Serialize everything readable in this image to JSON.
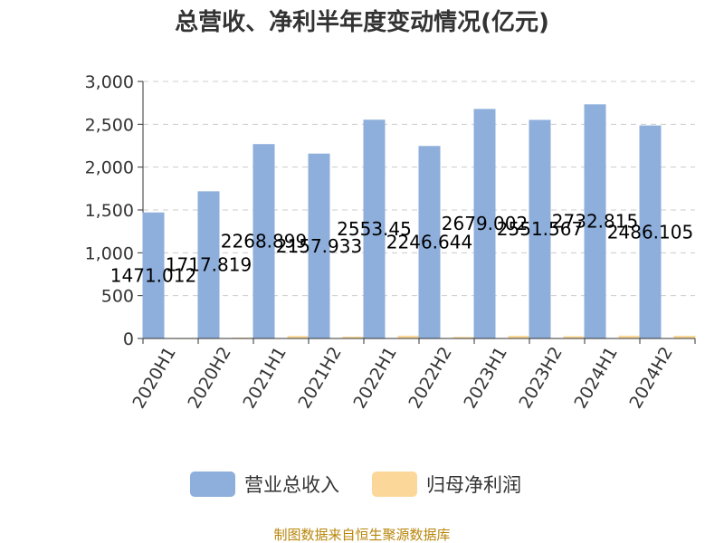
{
  "colors": {
    "revenue": "#8eaedb",
    "net_profit": "#fbd89a",
    "grid": "#cccccc",
    "axis": "#333333",
    "source": "#b8860b"
  },
  "chart_data": {
    "type": "bar",
    "title": "总营收、净利半年度变动情况(亿元)",
    "categories": [
      "2020H1",
      "2020H2",
      "2021H1",
      "2021H2",
      "2022H1",
      "2022H2",
      "2023H1",
      "2023H2",
      "2024H1",
      "2024H2"
    ],
    "series": [
      {
        "name": "营业总收入",
        "values": [
          1471.012,
          1717.819,
          2268.899,
          2157.933,
          2553.45,
          2246.644,
          2679.002,
          2551.567,
          2732.815,
          2486.105
        ],
        "labels": [
          "1471.012",
          "1717.819",
          "2268.899",
          "2157.933",
          "2553.45",
          "2246.644",
          "2679.002",
          "2551.567",
          "2732.815",
          "2486.105"
        ]
      },
      {
        "name": "归母净利润",
        "values": [
          4,
          10,
          30,
          22,
          33,
          18,
          32,
          27,
          33,
          32
        ]
      }
    ],
    "ylim": [
      0,
      3000
    ],
    "yticks": [
      "0",
      "500",
      "1,000",
      "1,500",
      "2,000",
      "2,500",
      "3,000"
    ],
    "grid": true,
    "legend_position": "bottom"
  },
  "source_text": "制图数据来自恒生聚源数据库"
}
